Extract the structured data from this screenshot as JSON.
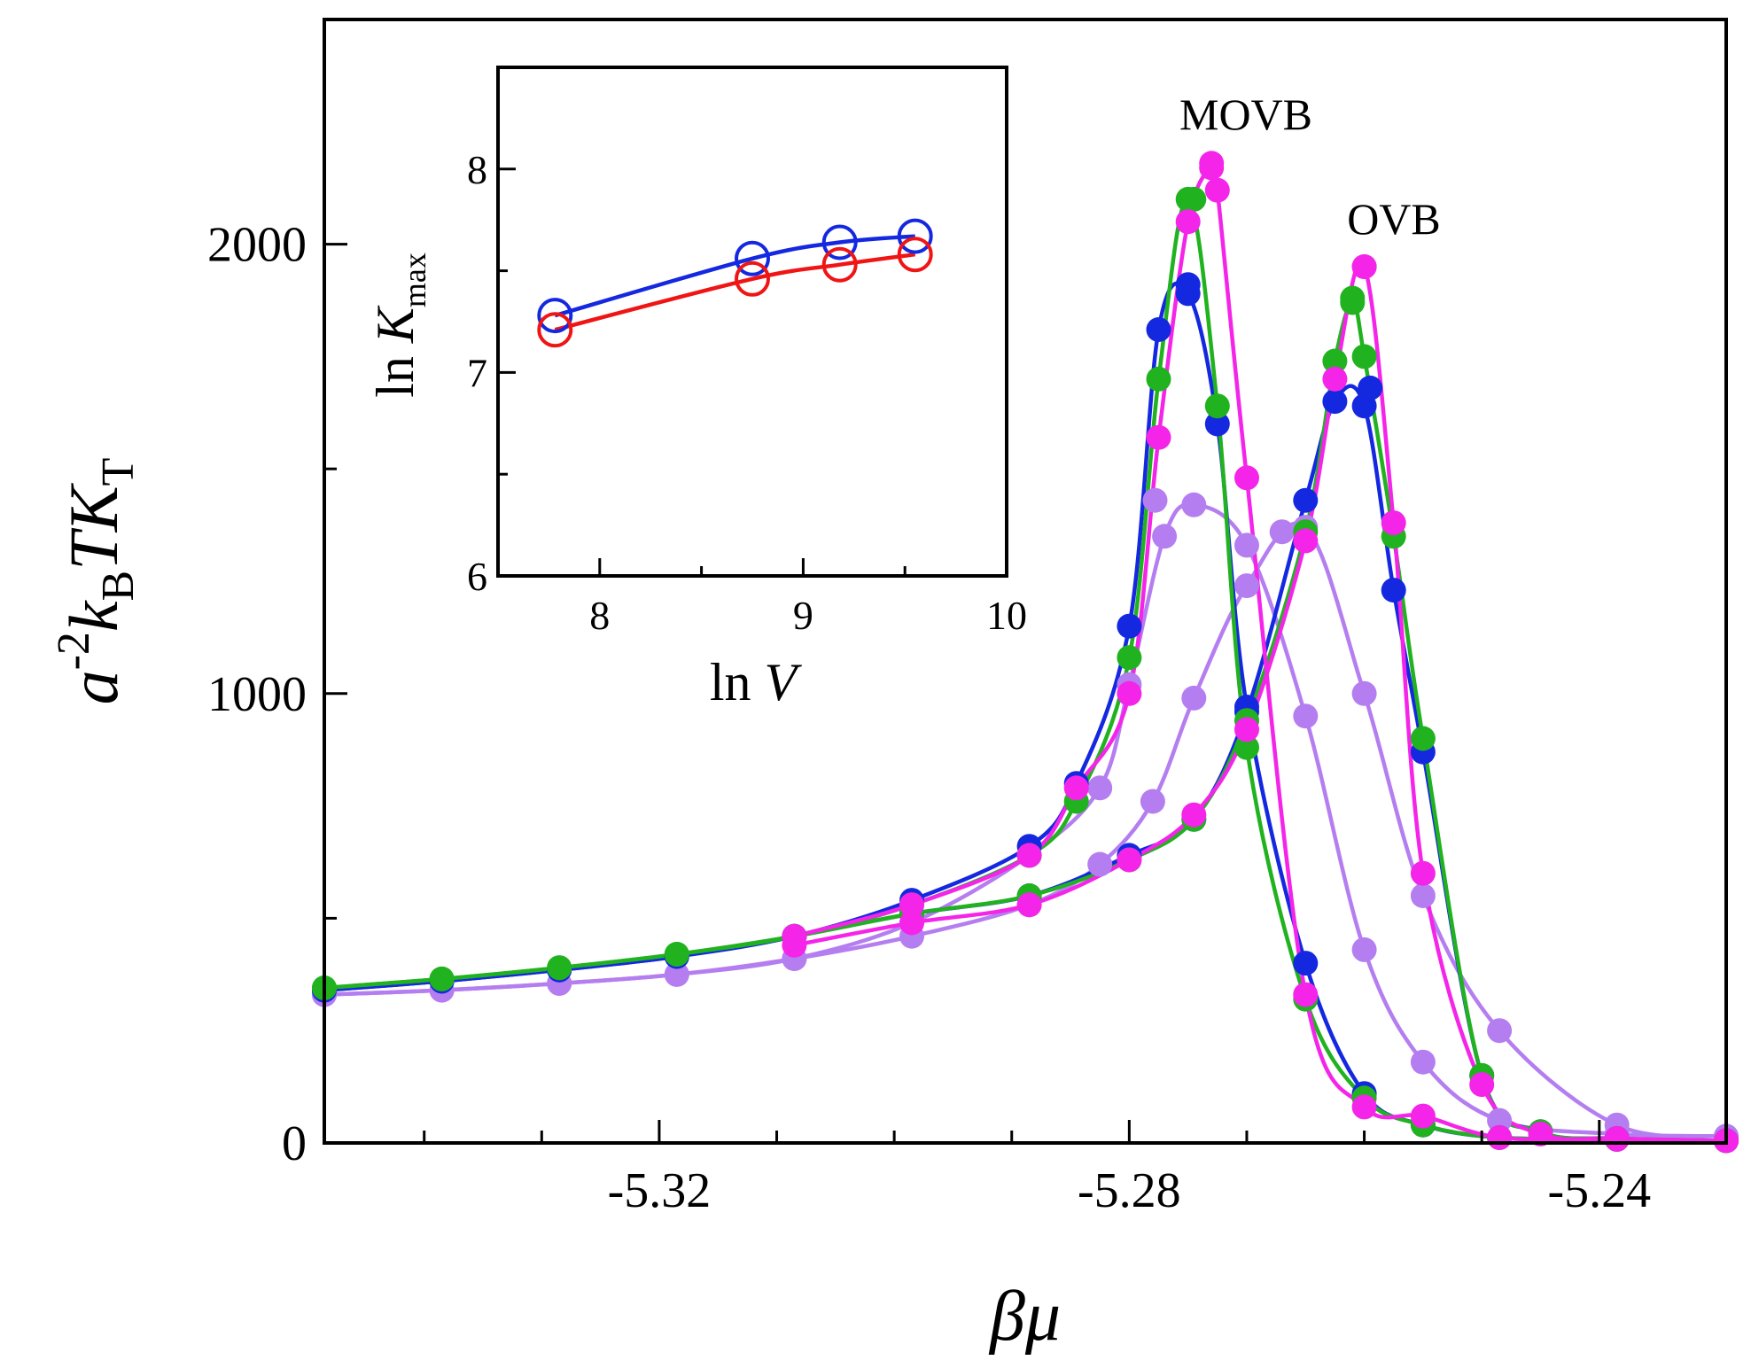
{
  "chart_data": [
    {
      "type": "line",
      "xlabel": "βμ",
      "ylabel": {
        "a": "a",
        "exp": "-2",
        "k": "k",
        "ksub": "B",
        "T": "TK",
        "Tsub": "T"
      },
      "xlim": [
        -5.3485,
        -5.2292
      ],
      "ylim": [
        0,
        2500
      ],
      "xticks": [
        -5.32,
        -5.28,
        -5.24
      ],
      "xtick_labels": [
        "-5.32",
        "-5.28",
        "-5.24"
      ],
      "xminor": [
        -5.34,
        -5.33,
        -5.31,
        -5.3,
        -5.29,
        -5.27,
        -5.26,
        -5.25
      ],
      "yticks": [
        0,
        1000,
        2000
      ],
      "ytick_labels": [
        "0",
        "1000",
        "2000"
      ],
      "yminor": [
        500,
        1500
      ],
      "annotations": [
        {
          "text": "MOVB",
          "x": -5.2745,
          "y": 2270
        },
        {
          "text": "OVB",
          "x": -5.2605,
          "y": 2030
        }
      ],
      "series": [
        {
          "name": "violet-MOVB",
          "color": "#b57ef0",
          "peak": [
            -5.2778,
            1430
          ],
          "x": [
            -5.3485,
            -5.3385,
            -5.3285,
            -5.3185,
            -5.3085,
            -5.2985,
            -5.2885,
            -5.2825,
            -5.28,
            -5.277,
            -5.2745,
            -5.27,
            -5.265,
            -5.26,
            -5.255,
            -5.2485,
            -5.2385,
            -5.2292
          ],
          "y": [
            330,
            340,
            355,
            375,
            410,
            490,
            640,
            790,
            1020,
            1350,
            1420,
            1330,
            950,
            430,
            180,
            50,
            20,
            15
          ]
        },
        {
          "name": "violet-OVB",
          "color": "#b57ef0",
          "peak": [
            -5.267,
            1360
          ],
          "x": [
            -5.3485,
            -5.3385,
            -5.3285,
            -5.3185,
            -5.3085,
            -5.2985,
            -5.2885,
            -5.2825,
            -5.278,
            -5.2745,
            -5.27,
            -5.265,
            -5.26,
            -5.255,
            -5.2485,
            -5.2385,
            -5.2292
          ],
          "y": [
            330,
            340,
            355,
            375,
            410,
            460,
            530,
            620,
            760,
            990,
            1240,
            1370,
            1000,
            550,
            250,
            40,
            15
          ]
        },
        {
          "name": "blue-MOVB",
          "color": "#1428e0",
          "peak": [
            -5.275,
            1910
          ],
          "x": [
            -5.3485,
            -5.3385,
            -5.3285,
            -5.3185,
            -5.3085,
            -5.2985,
            -5.2885,
            -5.2845,
            -5.28,
            -5.2775,
            -5.275,
            -5.2725,
            -5.27,
            -5.265,
            -5.26,
            -5.255,
            -5.2485,
            -5.2385,
            -5.2292
          ],
          "y": [
            340,
            360,
            385,
            415,
            460,
            540,
            660,
            800,
            1150,
            1810,
            1890,
            1600,
            970,
            400,
            110,
            40,
            12,
            8,
            5
          ]
        },
        {
          "name": "blue-OVB",
          "color": "#1428e0",
          "peak": [
            -5.2595,
            1680
          ],
          "x": [
            -5.3485,
            -5.3385,
            -5.3285,
            -5.3185,
            -5.3085,
            -5.2985,
            -5.2885,
            -5.28,
            -5.2745,
            -5.27,
            -5.265,
            -5.2625,
            -5.26,
            -5.2575,
            -5.255,
            -5.25,
            -5.245,
            -5.2385,
            -5.2292
          ],
          "y": [
            340,
            360,
            385,
            415,
            460,
            510,
            550,
            640,
            720,
            960,
            1430,
            1650,
            1640,
            1230,
            870,
            150,
            25,
            10,
            5
          ]
        },
        {
          "name": "green-MOVB",
          "color": "#21b21f",
          "peak": [
            -5.2745,
            2100
          ],
          "x": [
            -5.3485,
            -5.3385,
            -5.3285,
            -5.3185,
            -5.3085,
            -5.2985,
            -5.2885,
            -5.2845,
            -5.28,
            -5.2775,
            -5.275,
            -5.2725,
            -5.27,
            -5.265,
            -5.26,
            -5.255,
            -5.2485,
            -5.2385,
            -5.2292
          ],
          "y": [
            345,
            365,
            390,
            420,
            460,
            530,
            640,
            760,
            1080,
            1700,
            2100,
            1640,
            880,
            320,
            100,
            40,
            12,
            8,
            5
          ]
        },
        {
          "name": "green-OVB",
          "color": "#21b21f",
          "peak": [
            -5.261,
            1880
          ],
          "x": [
            -5.3485,
            -5.3385,
            -5.3285,
            -5.3185,
            -5.3085,
            -5.2985,
            -5.2885,
            -5.28,
            -5.2745,
            -5.27,
            -5.265,
            -5.2625,
            -5.261,
            -5.26,
            -5.2575,
            -5.255,
            -5.25,
            -5.245,
            -5.2385,
            -5.2292
          ],
          "y": [
            345,
            365,
            390,
            420,
            460,
            510,
            550,
            630,
            720,
            940,
            1360,
            1740,
            1870,
            1750,
            1350,
            900,
            150,
            25,
            10,
            5
          ]
        },
        {
          "name": "magenta-MOVB",
          "color": "#f425e8",
          "peak": [
            -5.273,
            2180
          ],
          "x": [
            -5.3085,
            -5.2985,
            -5.2885,
            -5.2845,
            -5.28,
            -5.2775,
            -5.275,
            -5.273,
            -5.2725,
            -5.27,
            -5.265,
            -5.26,
            -5.255,
            -5.2485,
            -5.2385,
            -5.2292
          ],
          "y": [
            460,
            530,
            640,
            790,
            1000,
            1570,
            2050,
            2170,
            2120,
            1480,
            330,
            80,
            60,
            12,
            8,
            5
          ]
        },
        {
          "name": "magenta-OVB",
          "color": "#f425e8",
          "peak": [
            -5.26,
            1950
          ],
          "x": [
            -5.3085,
            -5.2985,
            -5.2885,
            -5.28,
            -5.2745,
            -5.27,
            -5.265,
            -5.2625,
            -5.26,
            -5.2575,
            -5.255,
            -5.25,
            -5.245,
            -5.2385,
            -5.2292
          ],
          "y": [
            440,
            490,
            530,
            630,
            730,
            920,
            1340,
            1700,
            1950,
            1380,
            600,
            130,
            20,
            10,
            5
          ]
        }
      ]
    },
    {
      "type": "line",
      "inset": true,
      "xlabel": "ln V",
      "ylabel": {
        "pre": "ln ",
        "k": "K",
        "sub": "max"
      },
      "xlim": [
        7.5,
        10
      ],
      "ylim": [
        6,
        8.5
      ],
      "xticks": [
        8,
        9,
        10
      ],
      "xtick_labels": [
        "8",
        "9",
        "10"
      ],
      "xminor": [
        8.5,
        9.5
      ],
      "yticks": [
        6,
        7,
        8
      ],
      "ytick_labels": [
        "6",
        "7",
        "8"
      ],
      "yminor": [
        6.5,
        7.5
      ],
      "series": [
        {
          "name": "inset-blue",
          "color": "#1428e0",
          "x": [
            7.78,
            8.75,
            9.18,
            9.55
          ],
          "y": [
            7.28,
            7.56,
            7.64,
            7.67
          ]
        },
        {
          "name": "inset-red",
          "color": "#f01515",
          "x": [
            7.78,
            8.75,
            9.18,
            9.55
          ],
          "y": [
            7.21,
            7.46,
            7.53,
            7.58
          ]
        }
      ]
    }
  ]
}
